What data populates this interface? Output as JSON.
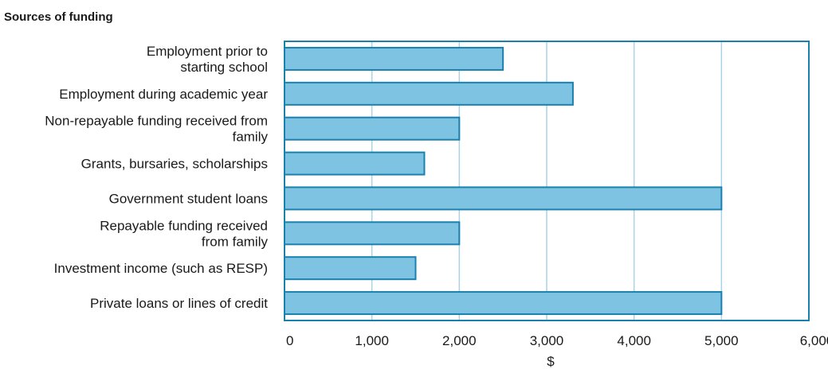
{
  "chart_data": {
    "type": "bar",
    "orientation": "horizontal",
    "title": "Sources of funding",
    "xlabel": "$",
    "ylabel": "",
    "xlim": [
      0,
      6000
    ],
    "ticks": [
      "0",
      "1,000",
      "2,000",
      "3,000",
      "4,000",
      "5,000",
      "6,000"
    ],
    "categories": [
      [
        "Employment prior to",
        "starting school"
      ],
      [
        "Employment during academic year"
      ],
      [
        "Non-repayable funding received from",
        "family"
      ],
      [
        "Grants, bursaries, scholarships"
      ],
      [
        "Government student loans"
      ],
      [
        "Repayable funding received",
        "from family"
      ],
      [
        "Investment income (such as RESP)"
      ],
      [
        "Private loans or lines of credit"
      ]
    ],
    "values": [
      2500,
      3300,
      2000,
      1600,
      5000,
      2000,
      1500,
      5000
    ],
    "grid": "vertical",
    "colors": {
      "bar_fill": "#7fc3e3",
      "bar_stroke": "#1a80ad",
      "frame": "#1a80ad",
      "gridline": "#a9d3e6"
    }
  }
}
